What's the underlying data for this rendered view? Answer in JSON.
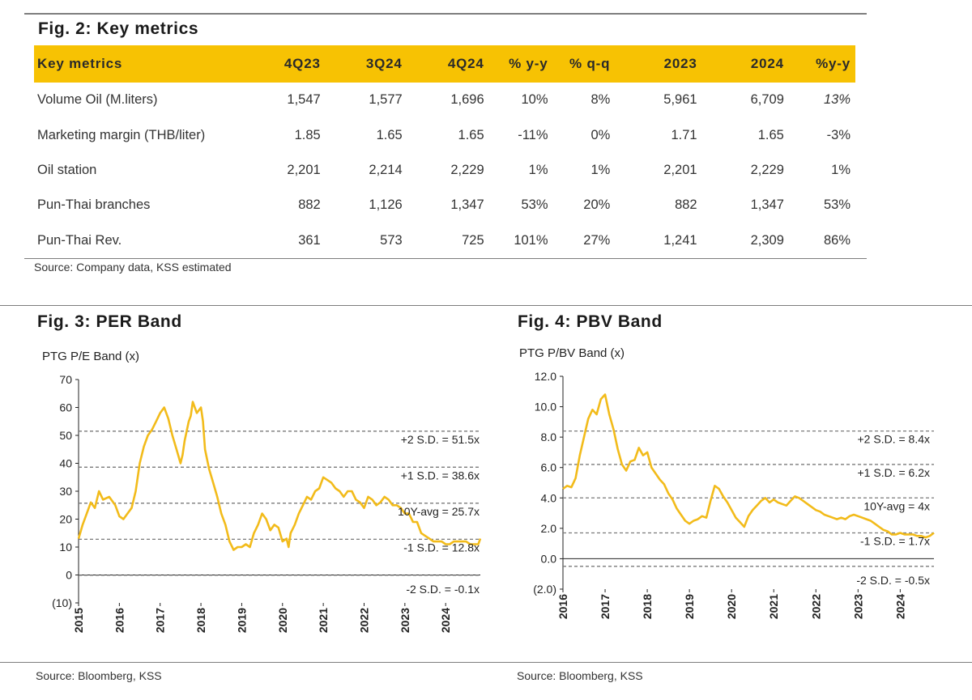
{
  "fig2": {
    "title": "Fig. 2: Key metrics",
    "headers": [
      "Key metrics",
      "4Q23",
      "3Q24",
      "4Q24",
      "% y-y",
      "% q-q",
      "2023",
      "2024",
      "%y-y"
    ],
    "rows": [
      [
        "Volume Oil (M.liters)",
        "1,547",
        "1,577",
        "1,696",
        "10%",
        "8%",
        "5,961",
        "6,709",
        "13%"
      ],
      [
        "Marketing margin (THB/liter)",
        "1.85",
        "1.65",
        "1.65",
        "-11%",
        "0%",
        "1.71",
        "1.65",
        "-3%"
      ],
      [
        "Oil station",
        "2,201",
        "2,214",
        "2,229",
        "1%",
        "1%",
        "2,201",
        "2,229",
        "1%"
      ],
      [
        "Pun-Thai branches",
        "882",
        "1,126",
        "1,347",
        "53%",
        "20%",
        "882",
        "1,347",
        "53%"
      ],
      [
        "Pun-Thai Rev.",
        "361",
        "573",
        "725",
        "101%",
        "27%",
        "1,241",
        "2,309",
        "86%"
      ]
    ],
    "source": "Source: Company data, KSS estimated"
  },
  "fig3": {
    "title": "Fig. 3: PER Band",
    "source": "Source: Bloomberg, KSS"
  },
  "fig4": {
    "title": "Fig. 4: PBV Band",
    "source": "Source: Bloomberg, KSS"
  },
  "colors": {
    "accent": "#f7c203",
    "line": "#f2bb1a",
    "band": "#7a7a7a"
  },
  "chart_data": [
    {
      "type": "line",
      "title": "PTG P/E Band (x)",
      "xlabel": "",
      "ylabel": "",
      "x_range": [
        2015,
        2024.85
      ],
      "ylim": [
        -10,
        70
      ],
      "yticks": [
        -10,
        0,
        10,
        20,
        30,
        40,
        50,
        60,
        70
      ],
      "ytick_labels": [
        "(10)",
        "0",
        "10",
        "20",
        "30",
        "40",
        "50",
        "60",
        "70"
      ],
      "xticks": [
        2015,
        2016,
        2017,
        2018,
        2019,
        2020,
        2021,
        2022,
        2023,
        2024
      ],
      "xtick_labels": [
        "2015",
        "2016",
        "2017",
        "2018",
        "2019",
        "2020",
        "2021",
        "2022",
        "2023",
        "2024"
      ],
      "bands": [
        {
          "label": "+2 S.D. = 51.5x",
          "value": 51.5
        },
        {
          "label": "+1 S.D. = 38.6x",
          "value": 38.6
        },
        {
          "label": "10Y-avg = 25.7x",
          "value": 25.7
        },
        {
          "label": "-1 S.D. = 12.8x",
          "value": 12.8
        },
        {
          "label": "-2 S.D. = -0.1x",
          "value": -0.1
        }
      ],
      "series": [
        {
          "name": "PTG P/E",
          "x": [
            2015.0,
            2015.1,
            2015.2,
            2015.3,
            2015.4,
            2015.5,
            2015.6,
            2015.75,
            2015.9,
            2016.0,
            2016.1,
            2016.2,
            2016.3,
            2016.4,
            2016.5,
            2016.6,
            2016.7,
            2016.8,
            2016.9,
            2017.0,
            2017.1,
            2017.2,
            2017.3,
            2017.4,
            2017.5,
            2017.55,
            2017.6,
            2017.7,
            2017.75,
            2017.8,
            2017.9,
            2018.0,
            2018.05,
            2018.1,
            2018.2,
            2018.3,
            2018.4,
            2018.5,
            2018.6,
            2018.7,
            2018.8,
            2018.9,
            2019.0,
            2019.1,
            2019.2,
            2019.3,
            2019.4,
            2019.5,
            2019.6,
            2019.7,
            2019.8,
            2019.9,
            2020.0,
            2020.1,
            2020.15,
            2020.2,
            2020.3,
            2020.4,
            2020.5,
            2020.6,
            2020.7,
            2020.8,
            2020.9,
            2021.0,
            2021.1,
            2021.2,
            2021.3,
            2021.4,
            2021.5,
            2021.6,
            2021.7,
            2021.8,
            2021.9,
            2022.0,
            2022.1,
            2022.2,
            2022.3,
            2022.4,
            2022.5,
            2022.6,
            2022.7,
            2022.8,
            2022.9,
            2023.0,
            2023.1,
            2023.2,
            2023.3,
            2023.4,
            2023.5,
            2023.6,
            2023.7,
            2023.8,
            2023.9,
            2024.0,
            2024.1,
            2024.2,
            2024.3,
            2024.4,
            2024.5,
            2024.6,
            2024.7,
            2024.8,
            2024.85
          ],
          "y": [
            13,
            18,
            22,
            26,
            24,
            30,
            27,
            28,
            25,
            21,
            20,
            22,
            24,
            30,
            40,
            46,
            50,
            52,
            55,
            58,
            60,
            56,
            50,
            45,
            40,
            43,
            48,
            55,
            57,
            62,
            58,
            60,
            55,
            45,
            38,
            33,
            28,
            22,
            18,
            12,
            9,
            10,
            10,
            11,
            10,
            15,
            18,
            22,
            20,
            16,
            18,
            17,
            12,
            13,
            10,
            15,
            18,
            22,
            25,
            28,
            27,
            30,
            31,
            35,
            34,
            33,
            31,
            30,
            28,
            30,
            30,
            27,
            26,
            24,
            28,
            27,
            25,
            26,
            28,
            27,
            25,
            25,
            24,
            22,
            22,
            19,
            19,
            15,
            14,
            13,
            12,
            12,
            12,
            11,
            11,
            12,
            12,
            12,
            12,
            11,
            11,
            11,
            13
          ]
        }
      ]
    },
    {
      "type": "line",
      "title": "PTG P/BV Band (x)",
      "xlabel": "",
      "ylabel": "",
      "x_range": [
        2016,
        2024.8
      ],
      "ylim": [
        -2,
        12
      ],
      "yticks": [
        -2,
        0,
        2,
        4,
        6,
        8,
        10,
        12
      ],
      "ytick_labels": [
        "(2.0)",
        "0.0",
        "2.0",
        "4.0",
        "6.0",
        "8.0",
        "10.0",
        "12.0"
      ],
      "xticks": [
        2016,
        2017,
        2018,
        2019,
        2020,
        2021,
        2022,
        2023,
        2024
      ],
      "xtick_labels": [
        "2016",
        "2017",
        "2018",
        "2019",
        "2020",
        "2021",
        "2022",
        "2023",
        "2024"
      ],
      "bands": [
        {
          "label": "+2 S.D. = 8.4x",
          "value": 8.4
        },
        {
          "label": "+1 S.D. = 6.2x",
          "value": 6.2
        },
        {
          "label": "10Y-avg = 4x",
          "value": 4.0
        },
        {
          "label": "-1 S.D. = 1.7x",
          "value": 1.7
        },
        {
          "label": "-2 S.D. = -0.5x",
          "value": -0.5
        }
      ],
      "series": [
        {
          "name": "PTG P/BV",
          "x": [
            2016.0,
            2016.1,
            2016.2,
            2016.3,
            2016.4,
            2016.5,
            2016.6,
            2016.7,
            2016.8,
            2016.9,
            2017.0,
            2017.1,
            2017.2,
            2017.3,
            2017.4,
            2017.5,
            2017.6,
            2017.7,
            2017.8,
            2017.9,
            2018.0,
            2018.1,
            2018.2,
            2018.3,
            2018.4,
            2018.5,
            2018.6,
            2018.7,
            2018.8,
            2018.9,
            2019.0,
            2019.1,
            2019.2,
            2019.3,
            2019.4,
            2019.5,
            2019.6,
            2019.7,
            2019.8,
            2019.9,
            2020.0,
            2020.1,
            2020.2,
            2020.3,
            2020.4,
            2020.5,
            2020.6,
            2020.7,
            2020.8,
            2020.9,
            2021.0,
            2021.1,
            2021.2,
            2021.3,
            2021.4,
            2021.5,
            2021.6,
            2021.7,
            2021.8,
            2021.9,
            2022.0,
            2022.1,
            2022.2,
            2022.3,
            2022.4,
            2022.5,
            2022.6,
            2022.7,
            2022.8,
            2022.9,
            2023.0,
            2023.1,
            2023.2,
            2023.3,
            2023.4,
            2023.5,
            2023.6,
            2023.7,
            2023.8,
            2023.9,
            2024.0,
            2024.1,
            2024.2,
            2024.3,
            2024.4,
            2024.5,
            2024.6,
            2024.7,
            2024.8
          ],
          "y": [
            4.6,
            4.8,
            4.7,
            5.3,
            6.8,
            8.0,
            9.2,
            9.8,
            9.5,
            10.5,
            10.8,
            9.5,
            8.5,
            7.2,
            6.2,
            5.8,
            6.4,
            6.5,
            7.3,
            6.8,
            7.0,
            6.0,
            5.6,
            5.2,
            4.9,
            4.3,
            3.9,
            3.3,
            2.9,
            2.5,
            2.3,
            2.5,
            2.6,
            2.8,
            2.7,
            3.8,
            4.8,
            4.6,
            4.1,
            3.7,
            3.2,
            2.7,
            2.4,
            2.1,
            2.8,
            3.2,
            3.5,
            3.8,
            4.0,
            3.7,
            3.9,
            3.7,
            3.6,
            3.5,
            3.8,
            4.1,
            4.0,
            3.8,
            3.6,
            3.4,
            3.2,
            3.1,
            2.9,
            2.8,
            2.7,
            2.6,
            2.7,
            2.6,
            2.8,
            2.9,
            2.8,
            2.7,
            2.6,
            2.5,
            2.3,
            2.1,
            1.9,
            1.8,
            1.6,
            1.6,
            1.7,
            1.6,
            1.6,
            1.6,
            1.5,
            1.5,
            1.4,
            1.5,
            1.7
          ]
        }
      ]
    }
  ]
}
